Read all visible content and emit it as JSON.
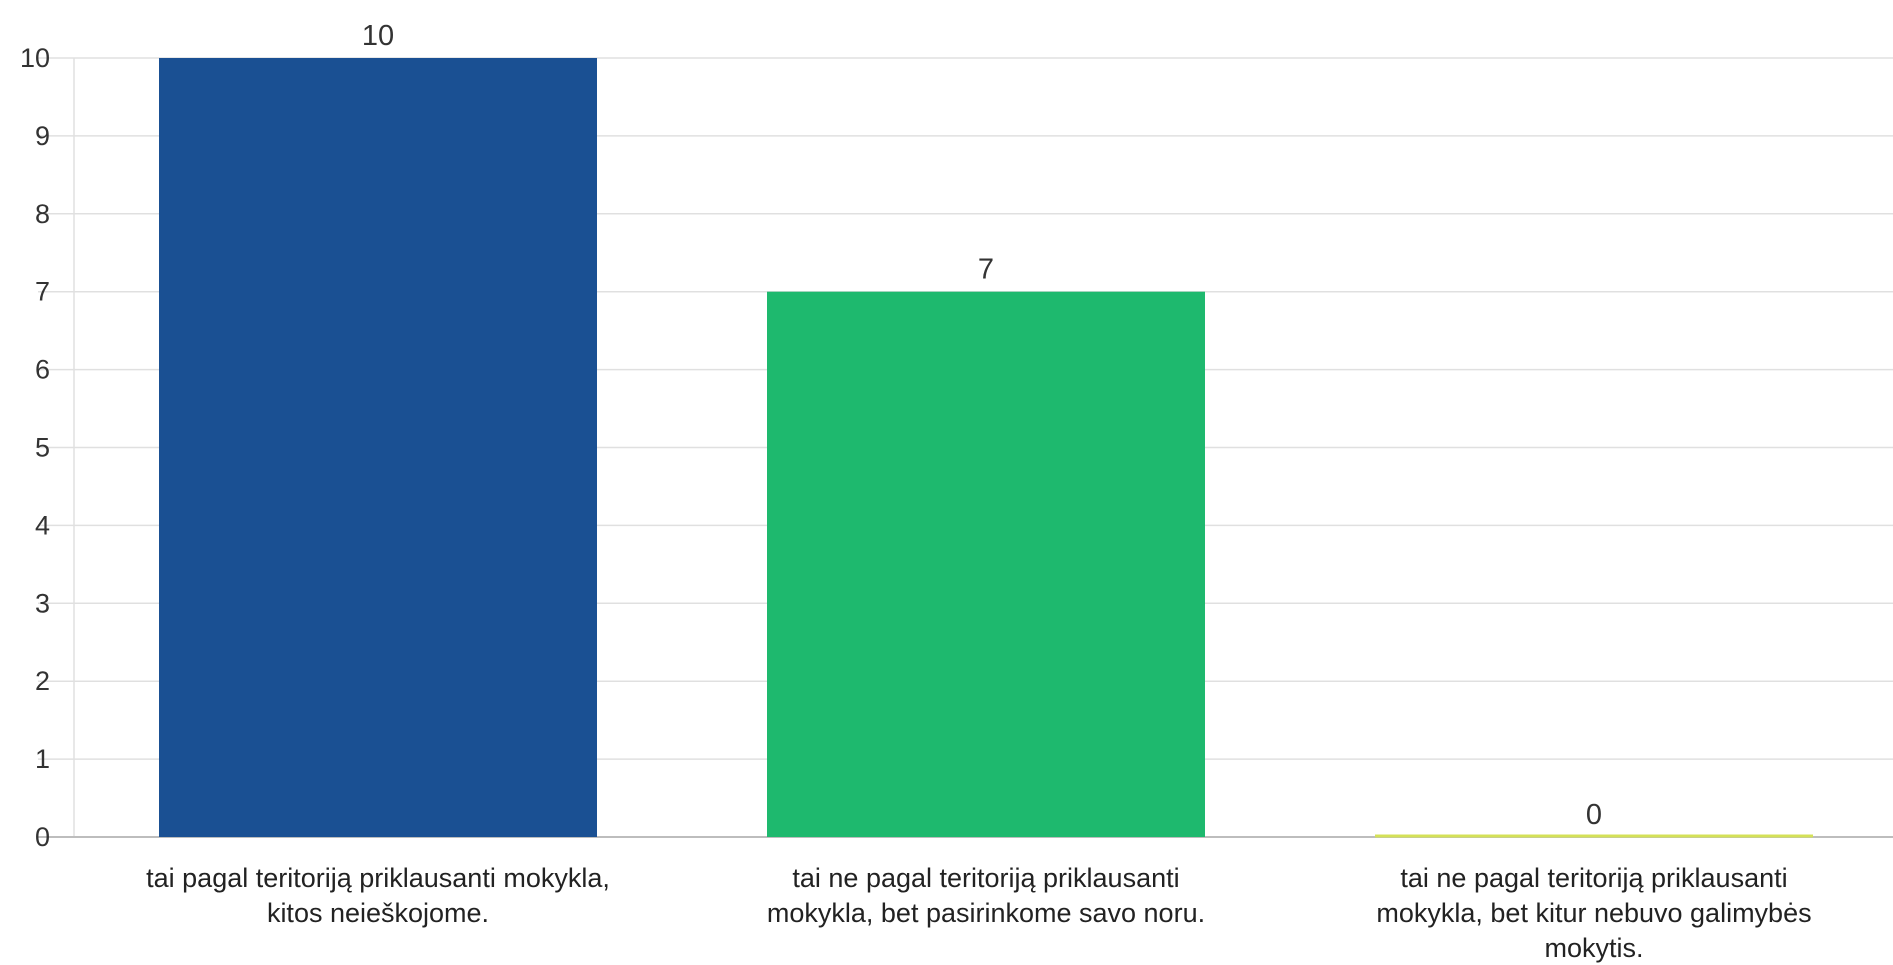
{
  "chart_data": {
    "type": "bar",
    "categories": [
      [
        "tai pagal teritoriją priklausanti mokykla,",
        "kitos neieškojome."
      ],
      [
        "tai ne pagal teritoriją priklausanti",
        "mokykla, bet pasirinkome savo noru."
      ],
      [
        "tai ne pagal teritoriją priklausanti",
        "mokykla, bet kitur nebuvo galimybės",
        "mokytis."
      ]
    ],
    "values": [
      10,
      7,
      0
    ],
    "data_labels": [
      "10",
      "7",
      "0"
    ],
    "colors": [
      "#1a5093",
      "#1eb96e",
      "#d4e157"
    ],
    "ylim": [
      0,
      10
    ],
    "yticks": [
      0,
      1,
      2,
      3,
      4,
      5,
      6,
      7,
      8,
      9,
      10
    ],
    "grid": true,
    "title": "",
    "xlabel": "",
    "ylabel": ""
  }
}
